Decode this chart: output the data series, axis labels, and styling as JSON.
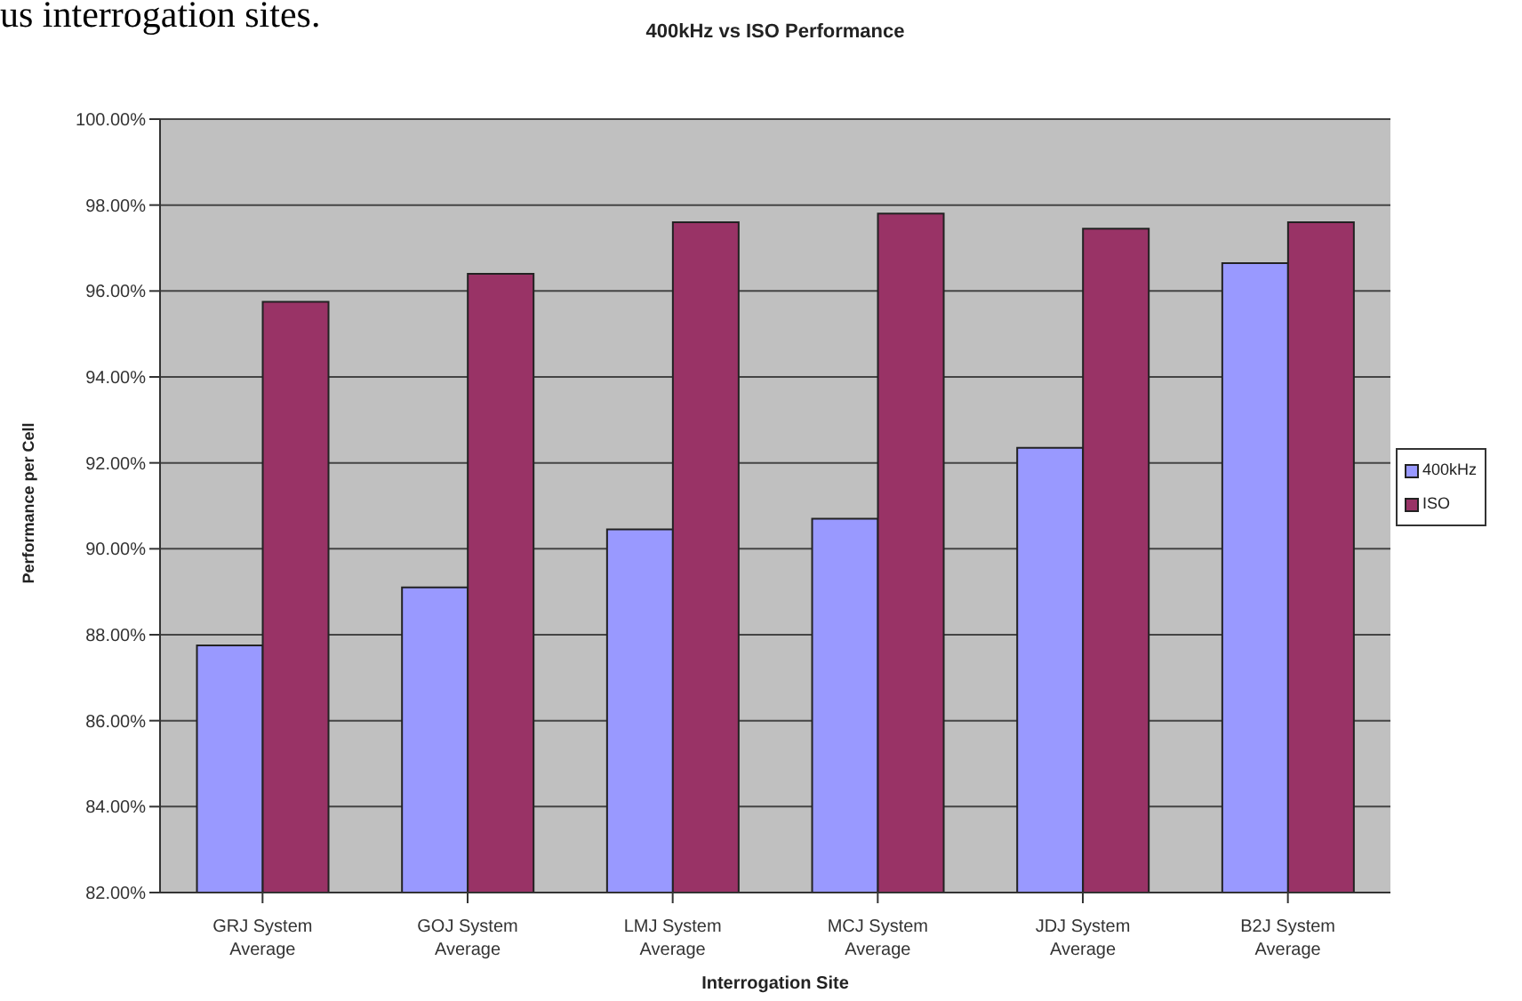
{
  "chart_data": {
    "type": "bar",
    "title": "400kHz vs ISO Performance",
    "xlabel": "Interrogation Site",
    "ylabel": "Performance per Cell",
    "annotations": [
      "us interrogation sites."
    ],
    "categories": [
      "GRJ System Average",
      "GOJ System Average",
      "LMJ System Average",
      "MCJ System Average",
      "JDJ System Average",
      "B2J System Average"
    ],
    "series": [
      {
        "name": "400kHz",
        "color": "#9999ff",
        "values": [
          87.75,
          89.1,
          90.45,
          90.7,
          92.35,
          96.65
        ]
      },
      {
        "name": "ISO",
        "color": "#993366",
        "values": [
          95.75,
          96.4,
          97.6,
          97.8,
          97.45,
          97.6
        ]
      }
    ],
    "ylim": [
      82,
      100
    ],
    "yticks": [
      {
        "value": 82,
        "label": "82.00%"
      },
      {
        "value": 84,
        "label": "84.00%"
      },
      {
        "value": 86,
        "label": "86.00%"
      },
      {
        "value": 88,
        "label": "88.00%"
      },
      {
        "value": 90,
        "label": "90.00%"
      },
      {
        "value": 92,
        "label": "92.00%"
      },
      {
        "value": 94,
        "label": "94.00%"
      },
      {
        "value": 96,
        "label": "96.00%"
      },
      {
        "value": 98,
        "label": "98.00%"
      },
      {
        "value": 100,
        "label": "100.00%"
      }
    ],
    "grid": "y",
    "legend": "right"
  }
}
